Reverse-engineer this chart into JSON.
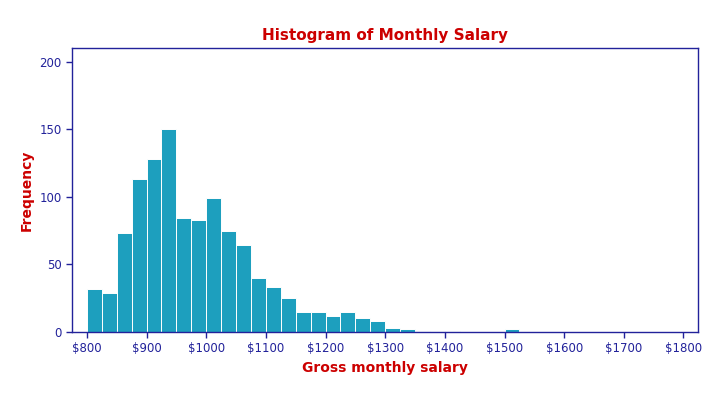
{
  "title": "Histogram of Monthly Salary",
  "xlabel": "Gross monthly salary",
  "ylabel": "Frequency",
  "title_color": "#cc0000",
  "label_color": "#cc0000",
  "bar_color": "#1d9fbe",
  "bar_edge_color": "#ffffff",
  "axis_color": "#22229a",
  "tick_color": "#22229a",
  "background_color": "#ffffff",
  "bin_left_edges": [
    800,
    825,
    850,
    875,
    900,
    925,
    950,
    975,
    1000,
    1025,
    1050,
    1075,
    1100,
    1125,
    1150,
    1175,
    1200,
    1225,
    1250,
    1275,
    1300,
    1325,
    1350,
    1375,
    1400,
    1425,
    1450,
    1475,
    1500,
    1525,
    1550,
    1575,
    1600,
    1625,
    1650,
    1675,
    1700,
    1725,
    1750,
    1775
  ],
  "frequencies": [
    32,
    29,
    73,
    113,
    128,
    150,
    84,
    83,
    99,
    75,
    64,
    40,
    33,
    25,
    15,
    15,
    12,
    15,
    10,
    8,
    3,
    2,
    1,
    1,
    1,
    0,
    0,
    0,
    2,
    0,
    0,
    0,
    0,
    0,
    0,
    0,
    0,
    0,
    0,
    0
  ],
  "bin_width": 25,
  "xlim": [
    775,
    1825
  ],
  "ylim": [
    0,
    210
  ],
  "xticks": [
    800,
    900,
    1000,
    1100,
    1200,
    1300,
    1400,
    1500,
    1600,
    1700,
    1800
  ],
  "xtick_labels": [
    "$800",
    "$900",
    "$1000",
    "$1100",
    "$1200",
    "$1300",
    "$1400",
    "$1500",
    "$1600",
    "$1700",
    "$1800"
  ],
  "yticks": [
    0,
    50,
    100,
    150,
    200
  ],
  "ytick_labels": [
    "0",
    "50",
    "100",
    "150",
    "200"
  ],
  "title_fontsize": 11,
  "label_fontsize": 10,
  "tick_fontsize": 8.5
}
